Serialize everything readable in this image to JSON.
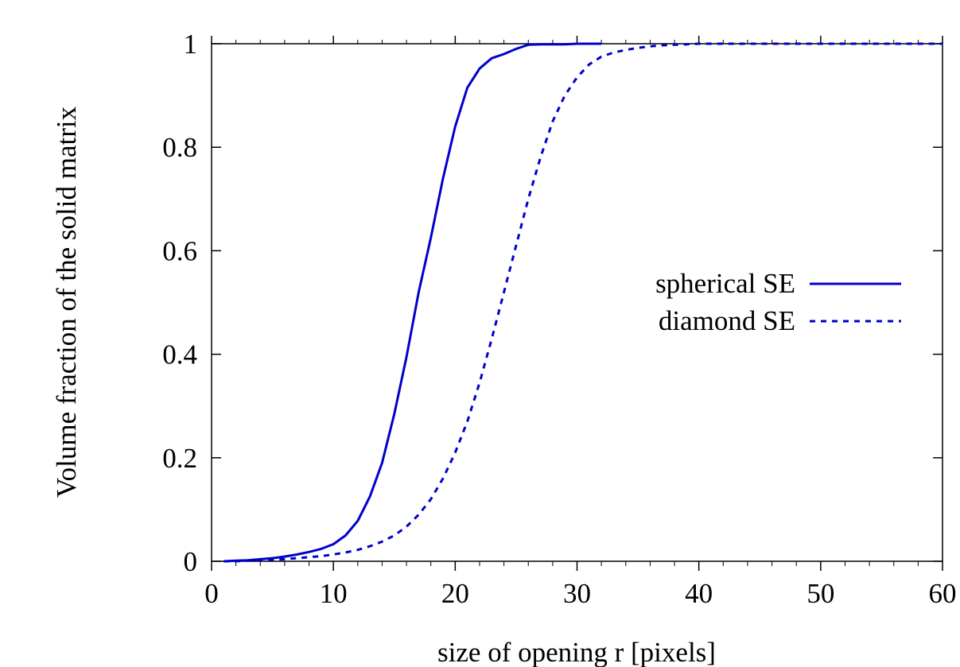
{
  "chart_data": {
    "type": "line",
    "title": "",
    "xlabel": "size of opening r [pixels]",
    "ylabel": "Volume fraction of the solid matrix",
    "xlim": [
      0,
      60
    ],
    "ylim": [
      0,
      1
    ],
    "xticks": [
      0,
      10,
      20,
      30,
      40,
      50,
      60
    ],
    "yticks": [
      0,
      0.2,
      0.4,
      0.6,
      0.8,
      1
    ],
    "xtick_labels": [
      "0",
      "10",
      "20",
      "30",
      "40",
      "50",
      "60"
    ],
    "ytick_labels": [
      "0",
      "0.2",
      "0.4",
      "0.6",
      "0.8",
      "1"
    ],
    "grid": false,
    "legend_position": "center-right",
    "series": [
      {
        "name": "spherical SE",
        "color": "#0000cc",
        "style": "solid",
        "x": [
          1,
          2,
          3,
          4,
          5,
          6,
          7,
          8,
          9,
          10,
          11,
          12,
          13,
          14,
          15,
          16,
          17,
          18,
          19,
          20,
          21,
          22,
          23,
          24,
          25,
          26,
          27,
          28,
          29,
          30,
          31,
          32
        ],
        "y": [
          0,
          0.001,
          0.002,
          0.004,
          0.006,
          0.009,
          0.013,
          0.018,
          0.024,
          0.033,
          0.05,
          0.078,
          0.125,
          0.19,
          0.285,
          0.395,
          0.52,
          0.625,
          0.74,
          0.84,
          0.915,
          0.952,
          0.972,
          0.98,
          0.99,
          0.998,
          0.999,
          0.999,
          0.999,
          1,
          1,
          1
        ]
      },
      {
        "name": "diamond SE",
        "color": "#0000cc",
        "style": "dashed",
        "x": [
          1,
          2,
          3,
          4,
          5,
          6,
          7,
          8,
          9,
          10,
          11,
          12,
          13,
          14,
          15,
          16,
          17,
          18,
          19,
          20,
          21,
          22,
          23,
          24,
          25,
          26,
          27,
          28,
          29,
          30,
          31,
          32,
          33,
          34,
          35,
          36,
          37,
          38,
          39,
          40,
          45,
          50,
          55,
          60
        ],
        "y": [
          0,
          0,
          0.001,
          0.002,
          0.003,
          0.004,
          0.006,
          0.008,
          0.01,
          0.013,
          0.017,
          0.022,
          0.029,
          0.038,
          0.05,
          0.067,
          0.09,
          0.12,
          0.16,
          0.21,
          0.27,
          0.345,
          0.43,
          0.52,
          0.61,
          0.7,
          0.78,
          0.85,
          0.9,
          0.935,
          0.96,
          0.975,
          0.983,
          0.988,
          0.992,
          0.995,
          0.997,
          0.998,
          0.999,
          1,
          1,
          1,
          1,
          1
        ]
      }
    ]
  }
}
